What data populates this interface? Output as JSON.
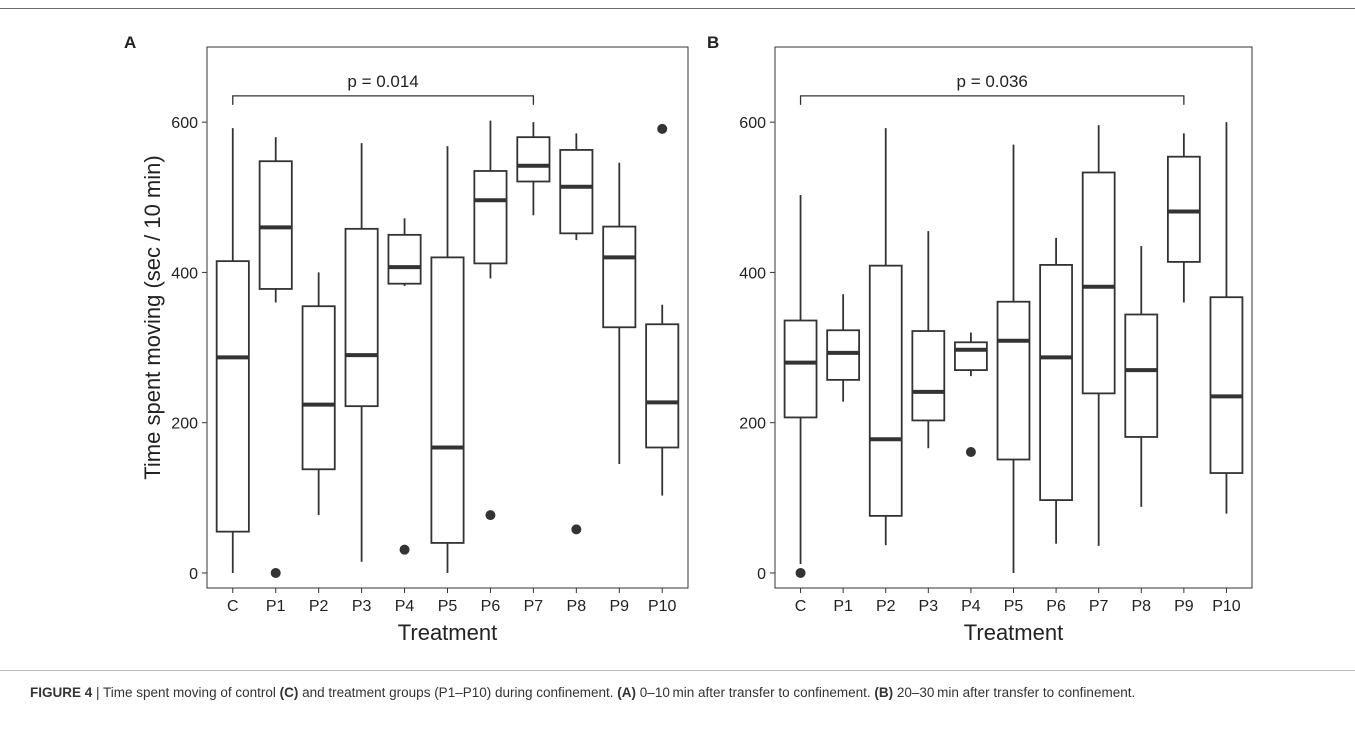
{
  "figure": {
    "caption": {
      "label": "FIGURE 4",
      "separator": " | ",
      "parts": [
        {
          "text": "Time spent moving of control ",
          "bold": false
        },
        {
          "text": "(C)",
          "bold": true
        },
        {
          "text": " and treatment groups (P1–P10) during confinement. ",
          "bold": false
        },
        {
          "text": "(A)",
          "bold": true
        },
        {
          "text": " 0–10 min after transfer to confinement. ",
          "bold": false
        },
        {
          "text": "(B)",
          "bold": true
        },
        {
          "text": " 20–30 min after transfer to confinement.",
          "bold": false
        }
      ]
    }
  },
  "chart_data": [
    {
      "type": "box",
      "panel_label": "A",
      "xlabel": "Treatment",
      "ylabel": "Time spent moving (sec / 10 min)",
      "ylim": [
        -20,
        700
      ],
      "yticks": [
        0,
        200,
        400,
        600
      ],
      "grid": false,
      "categories": [
        "C",
        "P1",
        "P2",
        "P3",
        "P4",
        "P5",
        "P6",
        "P7",
        "P8",
        "P9",
        "P10"
      ],
      "boxes": [
        {
          "group": "C",
          "whisker_low": 0,
          "q1": 55,
          "median": 287,
          "q3": 415,
          "whisker_high": 592,
          "outliers": []
        },
        {
          "group": "P1",
          "whisker_low": 360,
          "q1": 378,
          "median": 460,
          "q3": 548,
          "whisker_high": 580,
          "outliers": [
            0
          ]
        },
        {
          "group": "P2",
          "whisker_low": 77,
          "q1": 138,
          "median": 224,
          "q3": 355,
          "whisker_high": 400,
          "outliers": []
        },
        {
          "group": "P3",
          "whisker_low": 15,
          "q1": 222,
          "median": 290,
          "q3": 458,
          "whisker_high": 572,
          "outliers": []
        },
        {
          "group": "P4",
          "whisker_low": 382,
          "q1": 385,
          "median": 407,
          "q3": 450,
          "whisker_high": 472,
          "outliers": [
            31
          ]
        },
        {
          "group": "P5",
          "whisker_low": 0,
          "q1": 40,
          "median": 167,
          "q3": 420,
          "whisker_high": 568,
          "outliers": []
        },
        {
          "group": "P6",
          "whisker_low": 392,
          "q1": 412,
          "median": 496,
          "q3": 535,
          "whisker_high": 602,
          "outliers": [
            77
          ]
        },
        {
          "group": "P7",
          "whisker_low": 476,
          "q1": 521,
          "median": 542,
          "q3": 580,
          "whisker_high": 600,
          "outliers": []
        },
        {
          "group": "P8",
          "whisker_low": 443,
          "q1": 452,
          "median": 514,
          "q3": 563,
          "whisker_high": 585,
          "outliers": [
            58
          ]
        },
        {
          "group": "P9",
          "whisker_low": 145,
          "q1": 327,
          "median": 420,
          "q3": 461,
          "whisker_high": 546,
          "outliers": []
        },
        {
          "group": "P10",
          "whisker_low": 103,
          "q1": 167,
          "median": 227,
          "q3": 331,
          "whisker_high": 357,
          "outliers": [
            591
          ]
        }
      ],
      "annotation": {
        "text": "p = 0.014",
        "from": "C",
        "to": "P7",
        "y": 635
      }
    },
    {
      "type": "box",
      "panel_label": "B",
      "xlabel": "Treatment",
      "ylabel": "",
      "ylim": [
        -20,
        700
      ],
      "yticks": [
        0,
        200,
        400,
        600
      ],
      "grid": false,
      "categories": [
        "C",
        "P1",
        "P2",
        "P3",
        "P4",
        "P5",
        "P6",
        "P7",
        "P8",
        "P9",
        "P10"
      ],
      "boxes": [
        {
          "group": "C",
          "whisker_low": 12,
          "q1": 207,
          "median": 280,
          "q3": 336,
          "whisker_high": 503,
          "outliers": [
            0
          ]
        },
        {
          "group": "P1",
          "whisker_low": 228,
          "q1": 257,
          "median": 293,
          "q3": 323,
          "whisker_high": 371,
          "outliers": []
        },
        {
          "group": "P2",
          "whisker_low": 37,
          "q1": 76,
          "median": 178,
          "q3": 409,
          "whisker_high": 592,
          "outliers": []
        },
        {
          "group": "P3",
          "whisker_low": 166,
          "q1": 203,
          "median": 241,
          "q3": 322,
          "whisker_high": 455,
          "outliers": []
        },
        {
          "group": "P4",
          "whisker_low": 262,
          "q1": 270,
          "median": 297,
          "q3": 307,
          "whisker_high": 320,
          "outliers": [
            161
          ]
        },
        {
          "group": "P5",
          "whisker_low": 0,
          "q1": 151,
          "median": 309,
          "q3": 361,
          "whisker_high": 570,
          "outliers": []
        },
        {
          "group": "P6",
          "whisker_low": 39,
          "q1": 97,
          "median": 287,
          "q3": 410,
          "whisker_high": 446,
          "outliers": []
        },
        {
          "group": "P7",
          "whisker_low": 36,
          "q1": 239,
          "median": 381,
          "q3": 533,
          "whisker_high": 596,
          "outliers": []
        },
        {
          "group": "P8",
          "whisker_low": 88,
          "q1": 181,
          "median": 270,
          "q3": 344,
          "whisker_high": 435,
          "outliers": []
        },
        {
          "group": "P9",
          "whisker_low": 360,
          "q1": 414,
          "median": 481,
          "q3": 554,
          "whisker_high": 585,
          "outliers": []
        },
        {
          "group": "P10",
          "whisker_low": 79,
          "q1": 133,
          "median": 235,
          "q3": 367,
          "whisker_high": 600,
          "outliers": []
        }
      ],
      "annotation": {
        "text": "p = 0.036",
        "from": "C",
        "to": "P9",
        "y": 635
      }
    }
  ]
}
